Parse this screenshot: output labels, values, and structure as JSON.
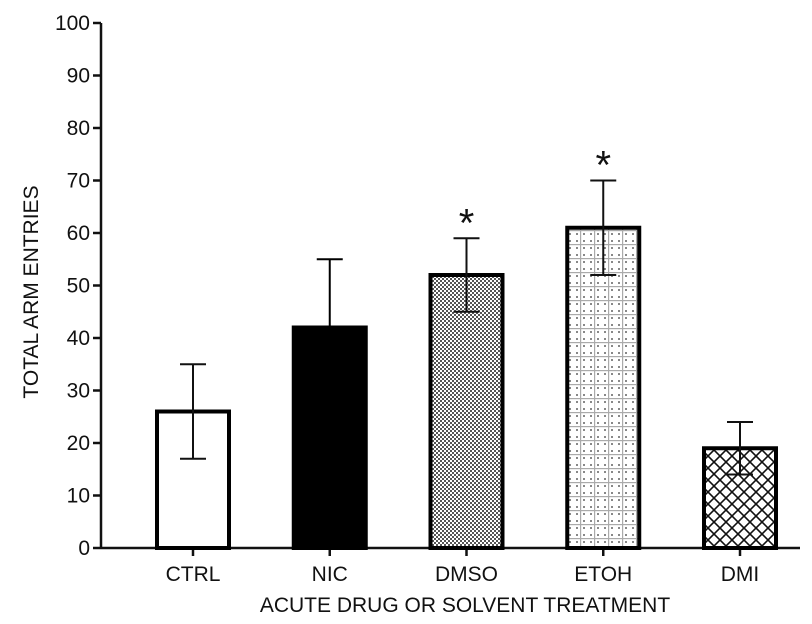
{
  "chart_data": {
    "type": "bar",
    "title": "",
    "xlabel": "ACUTE DRUG OR SOLVENT TREATMENT",
    "ylabel": "TOTAL ARM ENTRIES",
    "ylim": [
      0,
      100
    ],
    "yticks": [
      "0",
      "10",
      "20",
      "30",
      "40",
      "50",
      "60",
      "70",
      "80",
      "90",
      "100"
    ],
    "categories": [
      "CTRL",
      "NIC",
      "DMSO",
      "ETOH",
      "DMI"
    ],
    "values": [
      26,
      42,
      52,
      61,
      19
    ],
    "error_upper": [
      35,
      55,
      59,
      70,
      24
    ],
    "error_lower": [
      17,
      42,
      45,
      52,
      14
    ],
    "fills": [
      "white",
      "black",
      "fine-dots",
      "dotted-grid",
      "crosshatch"
    ],
    "significance": [
      "",
      "",
      "*",
      "*",
      ""
    ],
    "grid": false,
    "legend": "none"
  }
}
